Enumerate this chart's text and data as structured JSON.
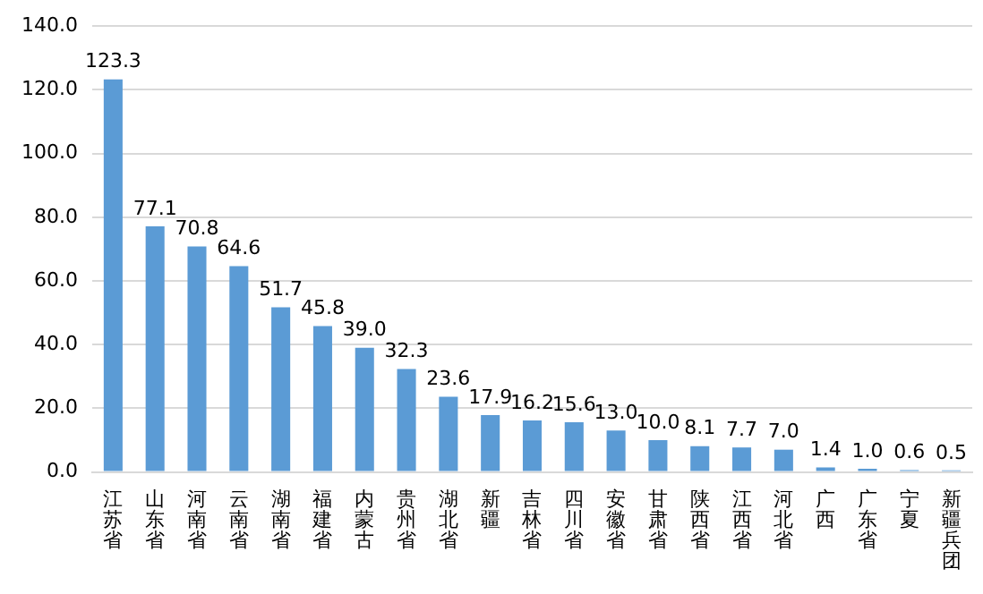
{
  "chart_data": {
    "type": "bar",
    "categories": [
      "江苏省",
      "山东省",
      "河南省",
      "云南省",
      "湖南省",
      "福建省",
      "内蒙古",
      "贵州省",
      "湖北省",
      "新疆",
      "吉林省",
      "四川省",
      "安徽省",
      "甘肃省",
      "陕西省",
      "江西省",
      "河北省",
      "广西",
      "广东省",
      "宁夏",
      "新疆兵团"
    ],
    "values": [
      123.3,
      77.1,
      70.8,
      64.6,
      51.7,
      45.8,
      39.0,
      32.3,
      23.6,
      17.9,
      16.2,
      15.6,
      13.0,
      10.0,
      8.1,
      7.7,
      7.0,
      1.4,
      1.0,
      0.6,
      0.5
    ],
    "value_labels": [
      "123.3",
      "77.1",
      "70.8",
      "64.6",
      "51.7",
      "45.8",
      "39.0",
      "32.3",
      "23.6",
      "17.9",
      "16.2",
      "15.6",
      "13.0",
      "10.0",
      "8.1",
      "7.7",
      "7.0",
      "1.4",
      "1.0",
      "0.6",
      "0.5"
    ],
    "color": "#5b9bd5",
    "ylim": [
      0,
      140
    ],
    "yticks": [
      {
        "value": 0,
        "label": "0.0"
      },
      {
        "value": 20,
        "label": "20.0"
      },
      {
        "value": 40,
        "label": "40.0"
      },
      {
        "value": 60,
        "label": "60.0"
      },
      {
        "value": 80,
        "label": "80.0"
      },
      {
        "value": 100,
        "label": "100.0"
      },
      {
        "value": 120,
        "label": "120.0"
      },
      {
        "value": 140,
        "label": "140.0"
      }
    ],
    "grid": "y"
  }
}
